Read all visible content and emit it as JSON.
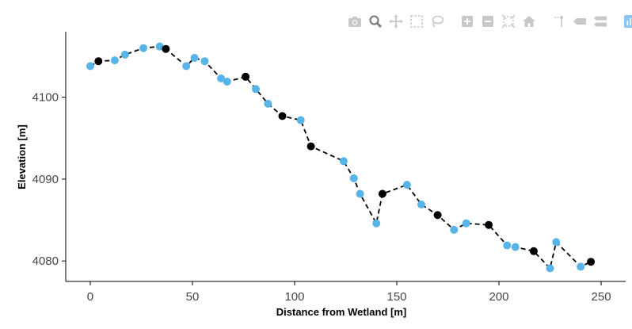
{
  "chart_data": {
    "type": "scatter",
    "mode": "lines+markers",
    "xlabel": "Distance from Wetland [m]",
    "ylabel": "Elevation [m]",
    "xlim": [
      -12,
      262
    ],
    "ylim": [
      4077.5,
      4108
    ],
    "xticks": [
      0,
      50,
      100,
      150,
      200,
      250
    ],
    "yticks": [
      4080,
      4090,
      4100
    ],
    "grid": false,
    "line_color": "#000000",
    "line_dash": "dashed",
    "color_blue": "#56b4e9",
    "color_black": "#000000",
    "points": [
      {
        "x": 0,
        "y": 4103.8,
        "c": "blue"
      },
      {
        "x": 4,
        "y": 4104.4,
        "c": "black"
      },
      {
        "x": 12,
        "y": 4104.5,
        "c": "blue"
      },
      {
        "x": 17,
        "y": 4105.2,
        "c": "blue"
      },
      {
        "x": 26,
        "y": 4106.0,
        "c": "blue"
      },
      {
        "x": 34,
        "y": 4106.2,
        "c": "blue"
      },
      {
        "x": 37,
        "y": 4105.9,
        "c": "black"
      },
      {
        "x": 47,
        "y": 4103.8,
        "c": "blue"
      },
      {
        "x": 51,
        "y": 4104.8,
        "c": "blue"
      },
      {
        "x": 56,
        "y": 4104.4,
        "c": "blue"
      },
      {
        "x": 64,
        "y": 4102.3,
        "c": "blue"
      },
      {
        "x": 67,
        "y": 4101.9,
        "c": "blue"
      },
      {
        "x": 76,
        "y": 4102.5,
        "c": "black"
      },
      {
        "x": 81,
        "y": 4101.0,
        "c": "blue"
      },
      {
        "x": 87,
        "y": 4099.2,
        "c": "blue"
      },
      {
        "x": 94,
        "y": 4097.7,
        "c": "black"
      },
      {
        "x": 103,
        "y": 4097.2,
        "c": "blue"
      },
      {
        "x": 108,
        "y": 4094.0,
        "c": "black"
      },
      {
        "x": 124,
        "y": 4092.2,
        "c": "blue"
      },
      {
        "x": 129,
        "y": 4090.1,
        "c": "blue"
      },
      {
        "x": 132,
        "y": 4088.2,
        "c": "blue"
      },
      {
        "x": 140,
        "y": 4084.6,
        "c": "blue"
      },
      {
        "x": 143,
        "y": 4088.2,
        "c": "black"
      },
      {
        "x": 155,
        "y": 4089.3,
        "c": "blue"
      },
      {
        "x": 162,
        "y": 4086.9,
        "c": "blue"
      },
      {
        "x": 170,
        "y": 4085.6,
        "c": "black"
      },
      {
        "x": 178,
        "y": 4083.8,
        "c": "blue"
      },
      {
        "x": 184,
        "y": 4084.6,
        "c": "blue"
      },
      {
        "x": 195,
        "y": 4084.4,
        "c": "black"
      },
      {
        "x": 204,
        "y": 4081.9,
        "c": "blue"
      },
      {
        "x": 208,
        "y": 4081.7,
        "c": "blue"
      },
      {
        "x": 217,
        "y": 4081.2,
        "c": "black"
      },
      {
        "x": 225,
        "y": 4079.1,
        "c": "blue"
      },
      {
        "x": 228,
        "y": 4082.3,
        "c": "blue"
      },
      {
        "x": 240,
        "y": 4079.3,
        "c": "blue"
      },
      {
        "x": 245,
        "y": 4079.9,
        "c": "black"
      }
    ]
  },
  "modebar": {
    "icons": [
      "camera-icon",
      "zoom-icon",
      "pan-icon",
      "box-select-icon",
      "lasso-select-icon",
      "zoom-in-icon",
      "zoom-out-icon",
      "autoscale-icon",
      "home-icon",
      "spike-lines-icon",
      "hover-closest-icon",
      "hover-compare-icon",
      "plotly-logo-icon"
    ],
    "icon_color": "#c8c8c8",
    "active_color": "#7f7f7f",
    "logo_color": "#8ec5f0"
  }
}
